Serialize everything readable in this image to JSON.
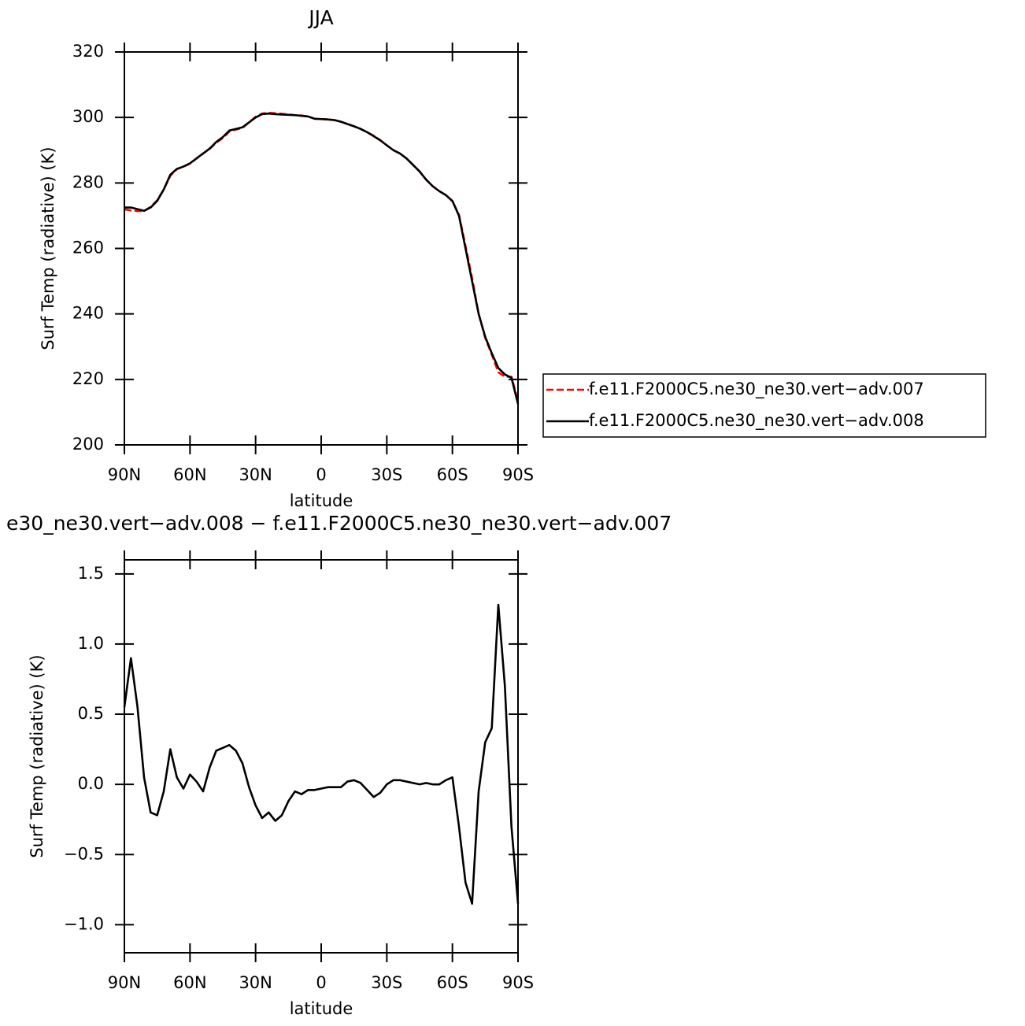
{
  "chart_data": [
    {
      "type": "line",
      "title": "JJA",
      "xlabel": "latitude",
      "ylabel": "Surf Temp (radiative) (K)",
      "x": [
        90,
        87,
        84,
        81,
        78,
        75,
        72,
        69,
        66,
        63,
        60,
        57,
        54,
        51,
        48,
        45,
        42,
        39,
        36,
        33,
        30,
        27,
        24,
        21,
        18,
        15,
        12,
        9,
        6,
        3,
        0,
        -3,
        -6,
        -9,
        -12,
        -15,
        -18,
        -21,
        -24,
        -27,
        -30,
        -33,
        -36,
        -39,
        -42,
        -45,
        -48,
        -51,
        -54,
        -57,
        -60,
        -63,
        -66,
        -69,
        -72,
        -75,
        -78,
        -81,
        -84,
        -87,
        -90
      ],
      "series": [
        {
          "name": "f.e11.F2000C5.ne30_ne30.vert−adv.007",
          "color": "#ff0000",
          "dash": true,
          "values": [
            271.9,
            271.6,
            271.4,
            271.4,
            272.7,
            274.7,
            278,
            282.2,
            284.2,
            285,
            285.9,
            287.5,
            289,
            290.4,
            292.3,
            293.7,
            295.7,
            296.3,
            296.8,
            298.5,
            300.2,
            301.2,
            301.4,
            301.3,
            301.1,
            300.9,
            300.7,
            300.6,
            300.3,
            299.6,
            299.5,
            299.4,
            299.2,
            298.7,
            298,
            297.3,
            296.5,
            295.5,
            294.4,
            293.1,
            291.5,
            290,
            289,
            287.5,
            285.5,
            283.5,
            281,
            279,
            277.5,
            276.3,
            274.4,
            270.3,
            260.7,
            250.9,
            240,
            232.7,
            227.6,
            222.2,
            220.8,
            220.8,
            213.3
          ]
        },
        {
          "name": "f.e11.F2000C5.ne30_ne30.vert−adv.008",
          "color": "#000000",
          "dash": false,
          "values": [
            272.5,
            272.5,
            272,
            271.5,
            272.5,
            274.5,
            278,
            282.5,
            284.3,
            285,
            286,
            287.5,
            289,
            290.5,
            292.5,
            294,
            296,
            296.5,
            297,
            298.5,
            300,
            301,
            301.2,
            301,
            300.9,
            300.8,
            300.7,
            300.5,
            300.3,
            299.6,
            299.5,
            299.4,
            299.2,
            298.7,
            298,
            297.3,
            296.5,
            295.5,
            294.3,
            293,
            291.5,
            290,
            289,
            287.5,
            285.5,
            283.5,
            281,
            279,
            277.5,
            276.3,
            274.5,
            270,
            260,
            250,
            240,
            233,
            228,
            223.5,
            221.5,
            220.5,
            212.5
          ]
        }
      ],
      "xlim": [
        90,
        -90
      ],
      "xticks": [
        {
          "value": 90,
          "label": "90N"
        },
        {
          "value": 60,
          "label": "60N"
        },
        {
          "value": 30,
          "label": "30N"
        },
        0,
        {
          "value": -30,
          "label": "30S"
        },
        {
          "value": -60,
          "label": "60S"
        },
        {
          "value": -90,
          "label": "90S"
        }
      ],
      "ylim": [
        200,
        320
      ],
      "yticks": [
        200,
        220,
        240,
        260,
        280,
        300,
        320
      ],
      "grid": false,
      "legend": "right"
    },
    {
      "type": "line",
      "title": "e30_ne30.vert−adv.008 − f.e11.F2000C5.ne30_ne30.vert−adv.007",
      "xlabel": "latitude",
      "ylabel": "Surf Temp (radiative) (K)",
      "x": [
        90,
        87,
        84,
        81,
        78,
        75,
        72,
        69,
        66,
        63,
        60,
        57,
        54,
        51,
        48,
        45,
        42,
        39,
        36,
        33,
        30,
        27,
        24,
        21,
        18,
        15,
        12,
        9,
        6,
        3,
        0,
        -3,
        -6,
        -9,
        -12,
        -15,
        -18,
        -21,
        -24,
        -27,
        -30,
        -33,
        -36,
        -39,
        -42,
        -45,
        -48,
        -51,
        -54,
        -57,
        -60,
        -63,
        -66,
        -69,
        -72,
        -75,
        -78,
        -81,
        -84,
        -87,
        -90
      ],
      "series": [
        {
          "color": "#000000",
          "dash": false,
          "values": [
            0.55,
            0.9,
            0.55,
            0.05,
            -0.2,
            -0.22,
            -0.05,
            0.25,
            0.05,
            -0.03,
            0.07,
            0.02,
            -0.05,
            0.12,
            0.24,
            0.26,
            0.28,
            0.24,
            0.15,
            -0.02,
            -0.15,
            -0.24,
            -0.2,
            -0.26,
            -0.22,
            -0.12,
            -0.05,
            -0.07,
            -0.04,
            -0.04,
            -0.03,
            -0.02,
            -0.02,
            -0.02,
            0.02,
            0.03,
            0.01,
            -0.04,
            -0.09,
            -0.06,
            0,
            0.03,
            0.03,
            0.02,
            0.01,
            0,
            0.01,
            0,
            0,
            0.03,
            0.05,
            -0.3,
            -0.7,
            -0.85,
            -0.05,
            0.3,
            0.4,
            1.28,
            0.7,
            -0.3,
            -0.85
          ]
        }
      ],
      "xlim": [
        90,
        -90
      ],
      "xticks": [
        {
          "value": 90,
          "label": "90N"
        },
        {
          "value": 60,
          "label": "60N"
        },
        {
          "value": 30,
          "label": "30N"
        },
        0,
        {
          "value": -30,
          "label": "30S"
        },
        {
          "value": -60,
          "label": "60S"
        },
        {
          "value": -90,
          "label": "90S"
        }
      ],
      "ylim": [
        -1.2,
        1.6
      ],
      "yticks": [
        {
          "value": -1,
          "label": "−1.0"
        },
        {
          "value": -0.5,
          "label": "−0.5"
        },
        {
          "value": 0,
          "label": "0.0"
        },
        0.5,
        {
          "value": 1,
          "label": "1.0"
        },
        1.5
      ],
      "grid": false
    }
  ]
}
